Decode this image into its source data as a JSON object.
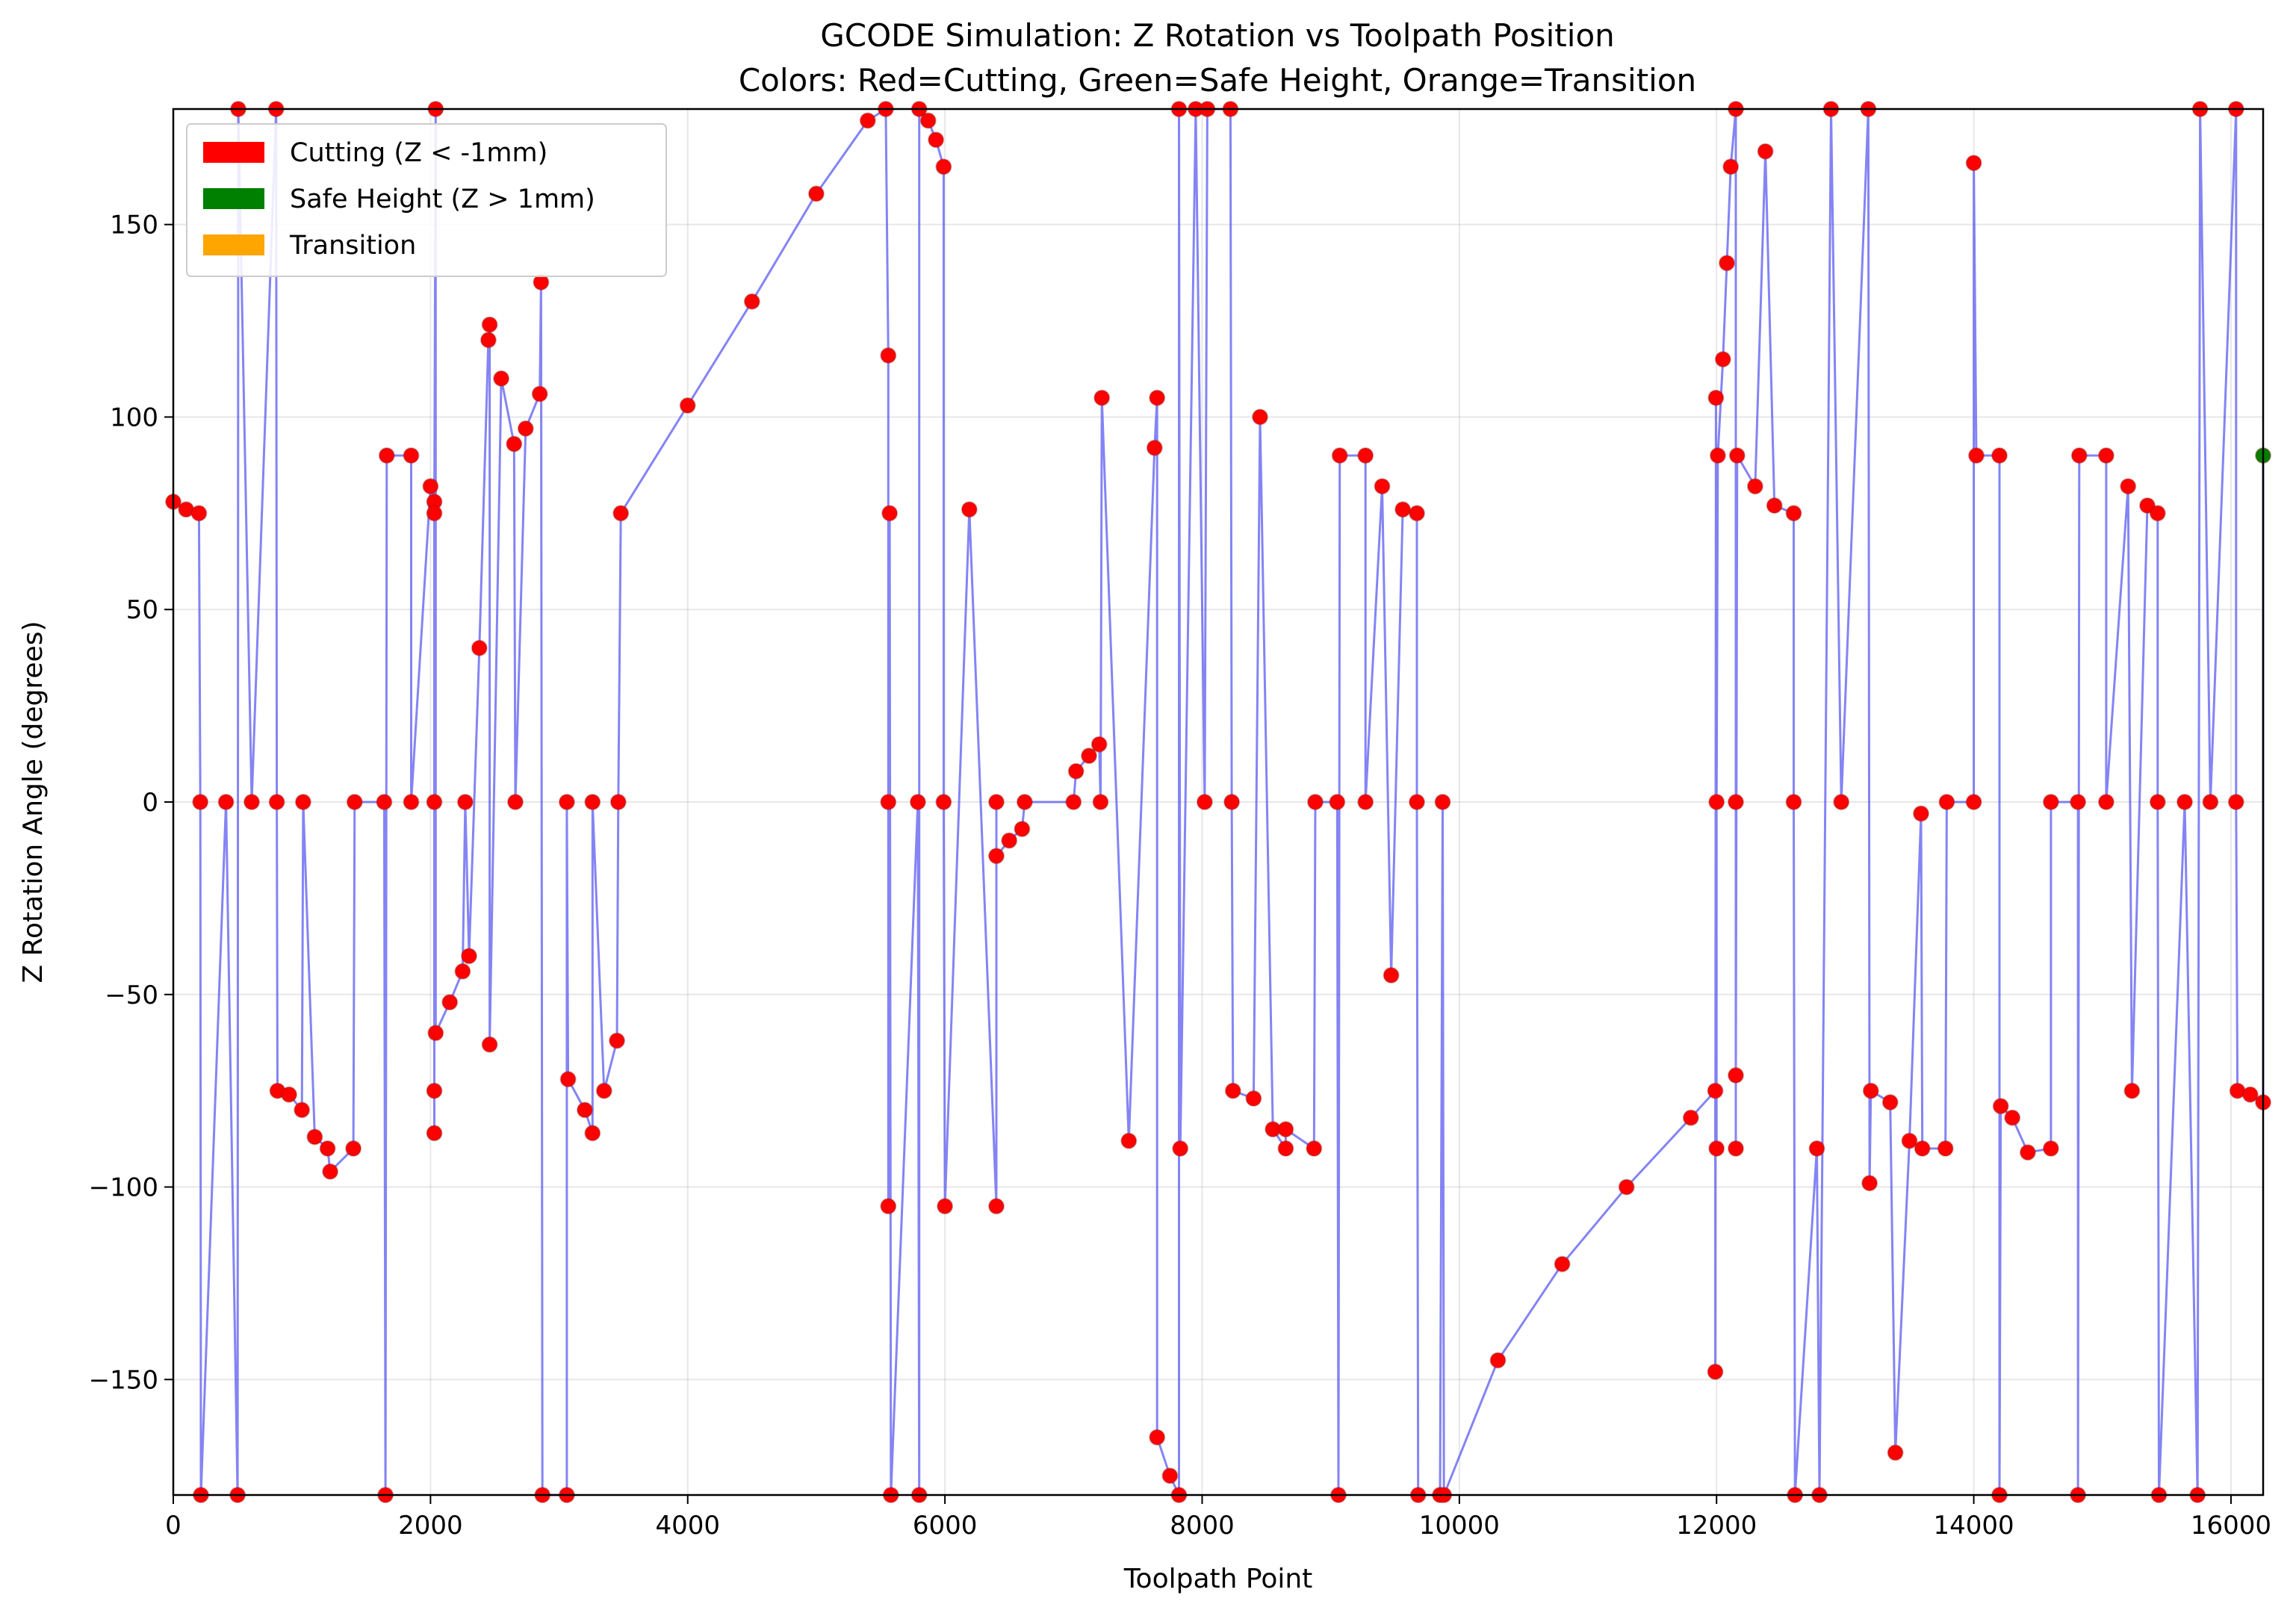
{
  "chart_data": {
    "type": "scatter",
    "title": "GCODE Simulation: Z Rotation vs Toolpath Position",
    "subtitle": "Colors: Red=Cutting, Green=Safe Height, Orange=Transition",
    "xlabel": "Toolpath Point",
    "ylabel": "Z Rotation Angle (degrees)",
    "xlim": [
      0,
      16250
    ],
    "ylim": [
      -180,
      180
    ],
    "x_ticks": [
      0,
      2000,
      4000,
      6000,
      8000,
      10000,
      12000,
      14000,
      16000
    ],
    "y_ticks": [
      -150,
      -100,
      -50,
      0,
      50,
      100,
      150
    ],
    "x_tick_labels": [
      "0",
      "2000",
      "4000",
      "6000",
      "8000",
      "10000",
      "12000",
      "14000",
      "16000"
    ],
    "y_tick_labels": [
      "−150",
      "−100",
      "−50",
      "0",
      "50",
      "100",
      "150"
    ],
    "grid": true,
    "legend_position": "top-left",
    "line_color": "#5b5bf0",
    "legend": [
      {
        "label": "Cutting (Z < -1mm)",
        "color": "#ff0000"
      },
      {
        "label": "Safe Height (Z > 1mm)",
        "color": "#008000"
      },
      {
        "label": "Transition",
        "color": "#ffa500"
      }
    ],
    "series": [
      {
        "category": "cutting",
        "color": "#ff0000",
        "points": [
          [
            0,
            78
          ],
          [
            100,
            76
          ],
          [
            200,
            75
          ],
          [
            210,
            0
          ],
          [
            215,
            -180
          ],
          [
            500,
            -180
          ],
          [
            410,
            0
          ],
          [
            505,
            180
          ],
          [
            800,
            180
          ],
          [
            610,
            0
          ],
          [
            805,
            0
          ],
          [
            810,
            -75
          ],
          [
            900,
            -76
          ],
          [
            1000,
            -80
          ],
          [
            1100,
            -87
          ],
          [
            1200,
            -90
          ],
          [
            1400,
            -90
          ],
          [
            1010,
            0
          ],
          [
            1220,
            -96
          ],
          [
            1410,
            0
          ],
          [
            1640,
            0
          ],
          [
            1650,
            -180
          ],
          [
            1660,
            90
          ],
          [
            1850,
            90
          ],
          [
            2000,
            82
          ],
          [
            2030,
            78
          ],
          [
            1850,
            0
          ],
          [
            2030,
            0
          ],
          [
            2030,
            -86
          ],
          [
            2030,
            -75
          ],
          [
            2030,
            75
          ],
          [
            2040,
            180
          ],
          [
            2040,
            -60
          ],
          [
            2150,
            -52
          ],
          [
            2250,
            -44
          ],
          [
            2270,
            0
          ],
          [
            2300,
            -40
          ],
          [
            2380,
            40
          ],
          [
            2450,
            120
          ],
          [
            2460,
            124
          ],
          [
            2550,
            110
          ],
          [
            2650,
            93
          ],
          [
            2740,
            97
          ],
          [
            2850,
            106
          ],
          [
            2460,
            -63
          ],
          [
            2660,
            0
          ],
          [
            2860,
            135
          ],
          [
            2870,
            -180
          ],
          [
            3060,
            -180
          ],
          [
            3060,
            0
          ],
          [
            3070,
            -72
          ],
          [
            3200,
            -80
          ],
          [
            3260,
            -86
          ],
          [
            3350,
            -75
          ],
          [
            3450,
            -62
          ],
          [
            3260,
            0
          ],
          [
            3460,
            0
          ],
          [
            3480,
            75
          ],
          [
            4000,
            103
          ],
          [
            4500,
            130
          ],
          [
            5000,
            158
          ],
          [
            5400,
            177
          ],
          [
            5540,
            180
          ],
          [
            5560,
            116
          ],
          [
            5560,
            0
          ],
          [
            5560,
            -105
          ],
          [
            5570,
            75
          ],
          [
            5580,
            -180
          ],
          [
            5800,
            -180
          ],
          [
            5790,
            0
          ],
          [
            5800,
            180
          ],
          [
            5870,
            177
          ],
          [
            5930,
            172
          ],
          [
            5990,
            165
          ],
          [
            5990,
            0
          ],
          [
            6000,
            -105
          ],
          [
            6400,
            -105
          ],
          [
            6190,
            76
          ],
          [
            6400,
            0
          ],
          [
            6400,
            -14
          ],
          [
            6500,
            -10
          ],
          [
            6600,
            -7
          ],
          [
            6620,
            0
          ],
          [
            7000,
            0
          ],
          [
            7020,
            8
          ],
          [
            7120,
            12
          ],
          [
            7200,
            15
          ],
          [
            7210,
            0
          ],
          [
            7220,
            105
          ],
          [
            7650,
            105
          ],
          [
            7430,
            -88
          ],
          [
            7630,
            92
          ],
          [
            7650,
            -165
          ],
          [
            7750,
            -175
          ],
          [
            7820,
            -180
          ],
          [
            7820,
            180
          ],
          [
            7950,
            180
          ],
          [
            7830,
            -90
          ],
          [
            8020,
            0
          ],
          [
            8040,
            180
          ],
          [
            8220,
            180
          ],
          [
            8230,
            0
          ],
          [
            8240,
            -75
          ],
          [
            8400,
            -77
          ],
          [
            8550,
            -85
          ],
          [
            8650,
            -90
          ],
          [
            8870,
            -90
          ],
          [
            8450,
            100
          ],
          [
            8650,
            -85
          ],
          [
            8880,
            0
          ],
          [
            9050,
            0
          ],
          [
            9060,
            -180
          ],
          [
            9070,
            90
          ],
          [
            9270,
            90
          ],
          [
            9400,
            82
          ],
          [
            9560,
            76
          ],
          [
            9670,
            75
          ],
          [
            9270,
            0
          ],
          [
            9470,
            -45
          ],
          [
            9670,
            0
          ],
          [
            9680,
            -180
          ],
          [
            9850,
            -180
          ],
          [
            9870,
            0
          ],
          [
            9880,
            -180
          ],
          [
            10300,
            -145
          ],
          [
            10800,
            -120
          ],
          [
            11300,
            -100
          ],
          [
            11800,
            -82
          ],
          [
            11990,
            -75
          ],
          [
            11990,
            -148
          ],
          [
            11995,
            105
          ],
          [
            12000,
            -90
          ],
          [
            12000,
            0
          ],
          [
            12010,
            90
          ],
          [
            12050,
            115
          ],
          [
            12080,
            140
          ],
          [
            12110,
            165
          ],
          [
            12150,
            180
          ],
          [
            12150,
            0
          ],
          [
            12150,
            -90
          ],
          [
            12150,
            -71
          ],
          [
            12160,
            90
          ],
          [
            12300,
            82
          ],
          [
            12450,
            77
          ],
          [
            12600,
            75
          ],
          [
            12380,
            169
          ],
          [
            12600,
            0
          ],
          [
            12610,
            -180
          ],
          [
            12800,
            -180
          ],
          [
            12780,
            -90
          ],
          [
            12970,
            0
          ],
          [
            12890,
            180
          ],
          [
            13180,
            180
          ],
          [
            13190,
            -99
          ],
          [
            13200,
            -75
          ],
          [
            13350,
            -78
          ],
          [
            13500,
            -88
          ],
          [
            13600,
            -90
          ],
          [
            13780,
            -90
          ],
          [
            13390,
            -169
          ],
          [
            13590,
            -3
          ],
          [
            13790,
            0
          ],
          [
            14000,
            0
          ],
          [
            14000,
            166
          ],
          [
            14020,
            90
          ],
          [
            14200,
            90
          ],
          [
            14200,
            -180
          ],
          [
            14210,
            -79
          ],
          [
            14300,
            -82
          ],
          [
            14420,
            -91
          ],
          [
            14600,
            -90
          ],
          [
            14600,
            0
          ],
          [
            14810,
            0
          ],
          [
            14810,
            -180
          ],
          [
            14820,
            90
          ],
          [
            15030,
            90
          ],
          [
            15200,
            82
          ],
          [
            15350,
            77
          ],
          [
            15430,
            75
          ],
          [
            15030,
            0
          ],
          [
            15230,
            -75
          ],
          [
            15430,
            0
          ],
          [
            15440,
            -180
          ],
          [
            15740,
            -180
          ],
          [
            15640,
            0
          ],
          [
            15840,
            0
          ],
          [
            15760,
            180
          ],
          [
            16040,
            180
          ],
          [
            16040,
            0
          ],
          [
            16050,
            -75
          ],
          [
            16150,
            -76
          ],
          [
            16250,
            -78
          ]
        ]
      },
      {
        "category": "safe",
        "color": "#008000",
        "points": [
          [
            16250,
            90
          ]
        ]
      }
    ]
  }
}
